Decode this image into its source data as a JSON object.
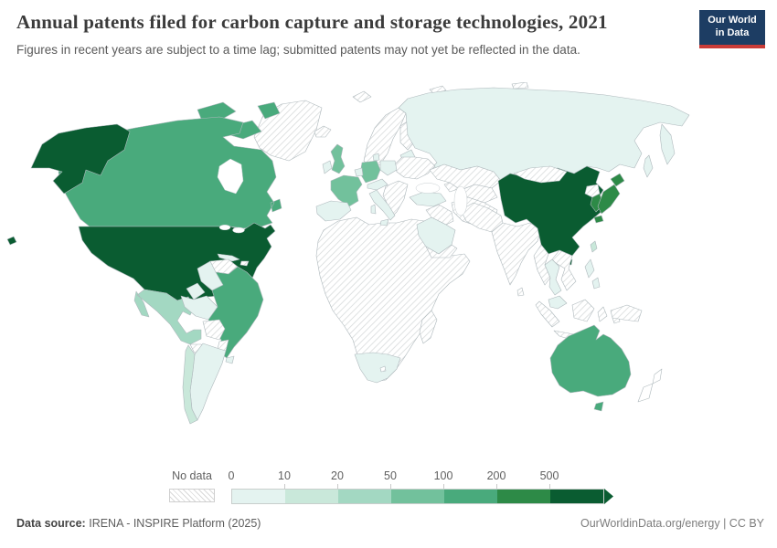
{
  "header": {
    "title": "Annual patents filed for carbon capture and storage technologies, 2021",
    "subtitle": "Figures in recent years are subject to a time lag; submitted patents may not yet be reflected in the data."
  },
  "logo": {
    "line1": "Our World",
    "line2": "in Data",
    "bg_color": "#1d3d63",
    "accent_color": "#c93b37"
  },
  "legend": {
    "no_data_label": "No data",
    "ticks": [
      "0",
      "10",
      "20",
      "50",
      "100",
      "200",
      "500"
    ],
    "ranges": [
      "0-10",
      "10-20",
      "20-50",
      "50-100",
      "100-200",
      "200-500",
      "500+"
    ],
    "colors": [
      "#e4f3f0",
      "#c9e8da",
      "#a3d8c2",
      "#72c19c",
      "#49aa7c",
      "#2d8a47",
      "#0a5c31"
    ]
  },
  "footer": {
    "source_label": "Data source:",
    "source_text": "IRENA - INSPIRE Platform (2025)",
    "right_text": "OurWorldinData.org/energy | CC BY"
  },
  "chart_data": {
    "type": "heatmap",
    "subtype": "world-choropleth",
    "title": "Annual patents filed for carbon capture and storage technologies",
    "year": "2021",
    "unit": "patents filed per year",
    "bins": [
      "0-10",
      "10-20",
      "20-50",
      "50-100",
      "100-200",
      "200-500",
      "500+"
    ],
    "legend_position": "bottom",
    "countries": {
      "united-states": "500+",
      "china": "500+",
      "japan": "200-500",
      "south-korea": "200-500",
      "canada": "100-200",
      "australia": "100-200",
      "brazil": "100-200",
      "germany": "50-100",
      "france": "50-100",
      "united-kingdom": "50-100",
      "mexico": "20-50",
      "chile": "10-20",
      "taiwan": "10-20",
      "russia": "0-10",
      "spain": "0-10",
      "italy": "0-10",
      "poland": "0-10",
      "denmark": "0-10",
      "benelux": "0-10",
      "central-europe": "0-10",
      "baltic-states": "0-10",
      "ireland": "0-10",
      "turkey": "0-10",
      "saudi-arabia": "0-10",
      "south-africa": "0-10",
      "argentina": "0-10",
      "uruguay": "0-10",
      "colombia": "0-10",
      "ecuador": "0-10",
      "peru": "0-10",
      "cuba": "0-10",
      "thailand": "0-10",
      "malaysia": "0-10",
      "philippines": "0-10",
      "greenland": "no-data",
      "iceland": "no-data",
      "svalbard": "no-data",
      "arctic-islands": "no-data",
      "norway-sweden": "no-data",
      "finland": "no-data",
      "ukraine-belarus": "no-data",
      "balkans": "no-data",
      "central-america": "no-data",
      "hispaniola": "no-data",
      "venezuela": "no-data",
      "bolivia": "no-data",
      "paraguay": "no-data",
      "africa-mainland": "no-data",
      "lesotho": "no-data",
      "madagascar": "no-data",
      "caucasus": "no-data",
      "kazakhstan": "no-data",
      "central-asia": "no-data",
      "iraq-syria": "no-data",
      "iran": "no-data",
      "yemen-oman": "no-data",
      "afghanistan-pakistan": "no-data",
      "india": "no-data",
      "sri-lanka": "no-data",
      "mongolia": "no-data",
      "north-korea": "no-data",
      "myanmar": "no-data",
      "vietnam-laos-cambodia": "no-data",
      "sumatra": "no-data",
      "borneo": "no-data",
      "java": "no-data",
      "sulawesi": "no-data",
      "moluccas": "no-data",
      "new-guinea": "no-data",
      "new-zealand": "none"
    }
  }
}
